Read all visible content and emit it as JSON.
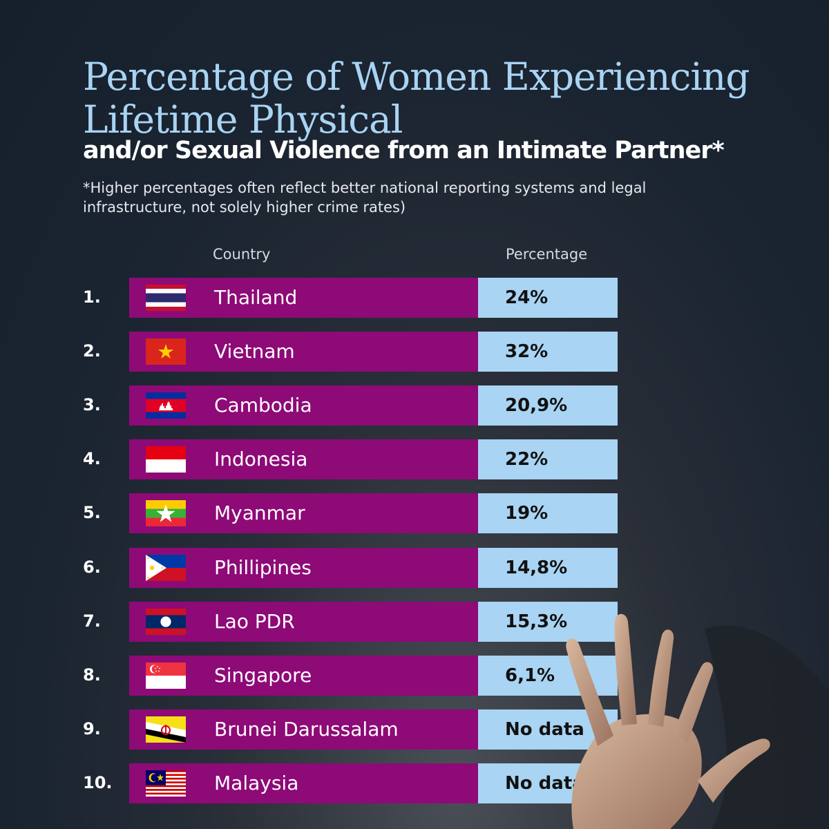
{
  "title": "Percentage of Women Experiencing Lifetime Physical",
  "subtitle": "and/or Sexual Violence from an Intimate Partner*",
  "note": "*Higher percentages often reflect better national reporting systems and legal infrastructure, not solely higher crime rates)",
  "columns": {
    "country": "Country",
    "percentage": "Percentage"
  },
  "colors": {
    "bar": "#8e0a77",
    "value_box": "#a9d4f3",
    "title": "#a9d4f3"
  },
  "rows": [
    {
      "rank": "1.",
      "flag": "thailand-flag-icon",
      "country": "Thailand",
      "value": "24%"
    },
    {
      "rank": "2.",
      "flag": "vietnam-flag-icon",
      "country": "Vietnam",
      "value": "32%"
    },
    {
      "rank": "3.",
      "flag": "cambodia-flag-icon",
      "country": "Cambodia",
      "value": "20,9%"
    },
    {
      "rank": "4.",
      "flag": "indonesia-flag-icon",
      "country": "Indonesia",
      "value": "22%"
    },
    {
      "rank": "5.",
      "flag": "myanmar-flag-icon",
      "country": "Myanmar",
      "value": "19%"
    },
    {
      "rank": "6.",
      "flag": "philippines-flag-icon",
      "country": "Phillipines",
      "value": "14,8%"
    },
    {
      "rank": "7.",
      "flag": "laos-flag-icon",
      "country": "Lao PDR",
      "value": "15,3%"
    },
    {
      "rank": "8.",
      "flag": "singapore-flag-icon",
      "country": "Singapore",
      "value": "6,1%"
    },
    {
      "rank": "9.",
      "flag": "brunei-flag-icon",
      "country": "Brunei Darussalam",
      "value": "No data"
    },
    {
      "rank": "10.",
      "flag": "malaysia-flag-icon",
      "country": "Malaysia",
      "value": "No data"
    }
  ]
}
